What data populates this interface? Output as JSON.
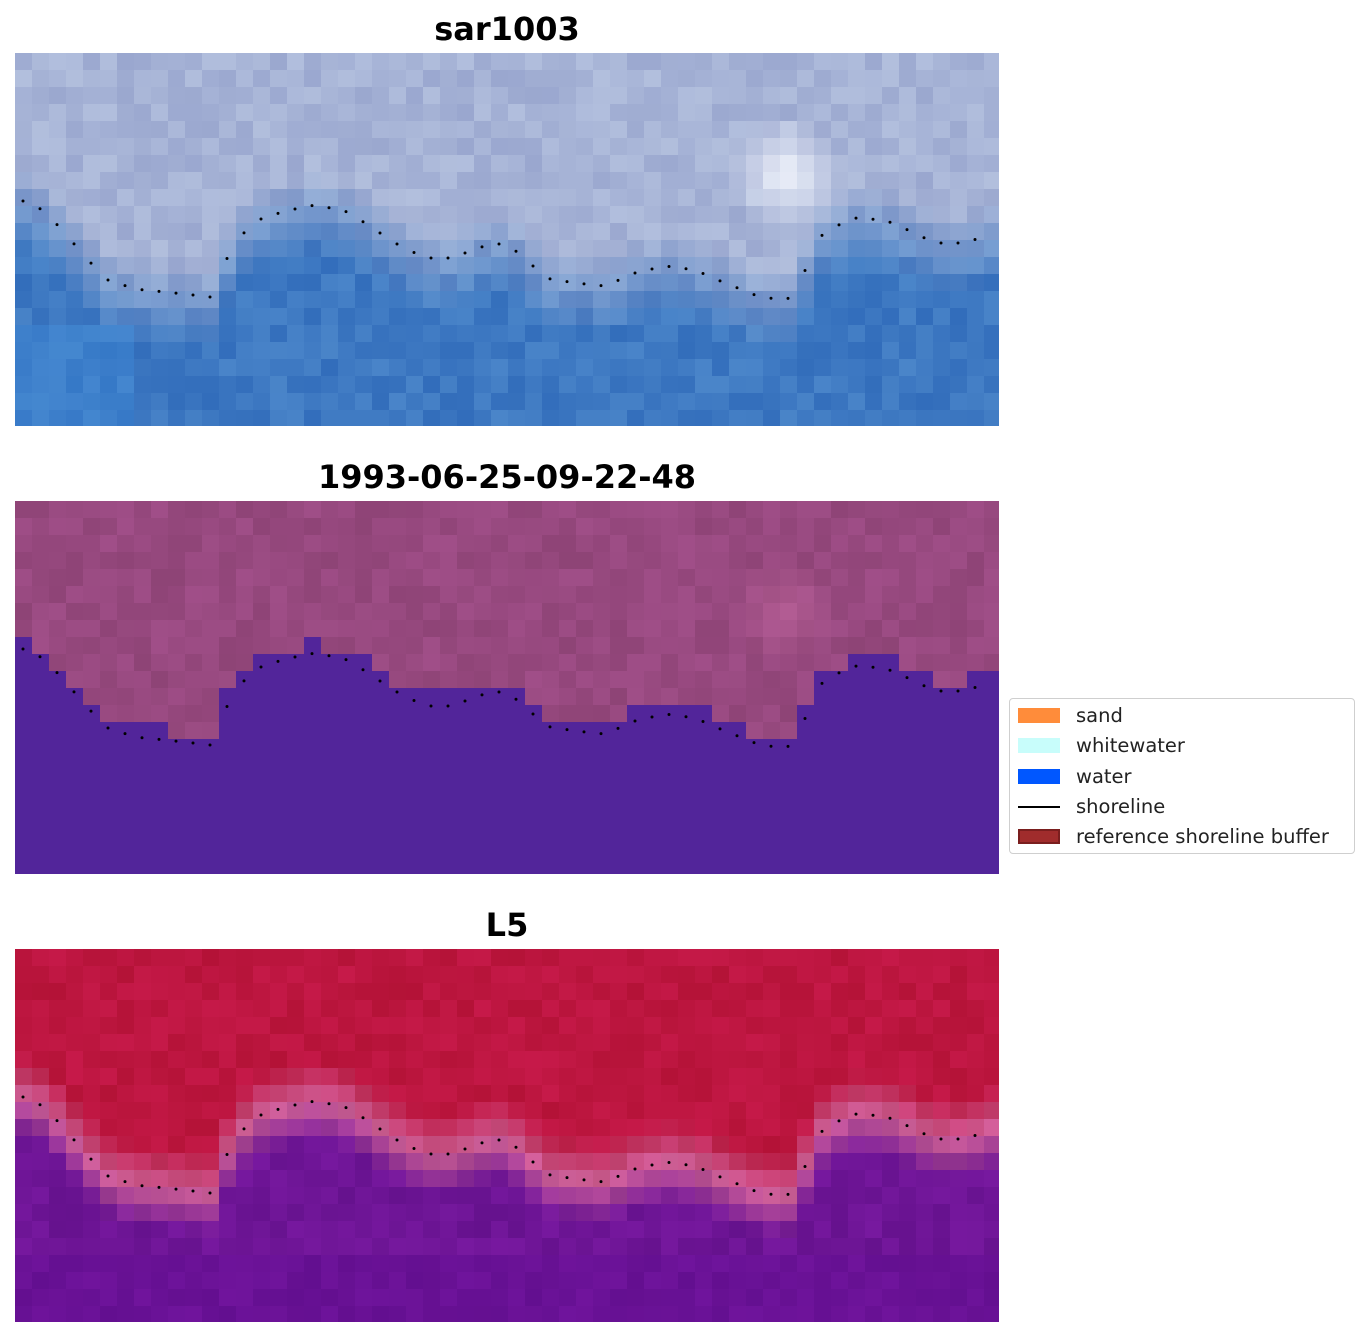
{
  "panels": [
    {
      "title": "sar1003"
    },
    {
      "title": "1993-06-25-09-22-48"
    },
    {
      "title": "L5"
    }
  ],
  "legend": {
    "items": [
      {
        "label": "sand",
        "type": "patch",
        "color": "#ff8c3a"
      },
      {
        "label": "whitewater",
        "type": "patch",
        "color": "#c8fdfb"
      },
      {
        "label": "water",
        "type": "patch",
        "color": "#0057ff"
      },
      {
        "label": "shoreline",
        "type": "line",
        "color": "#000000"
      },
      {
        "label": "reference shoreline buffer",
        "type": "patch",
        "color": "#a02c2c",
        "edge": "#7a1e1e"
      }
    ]
  },
  "colors": {
    "rgb_land": "#a6b3d6",
    "rgb_water": "#3e79c2",
    "classified_land": "#97497f",
    "classified_water": "#52259a",
    "index_land": "#bd1640",
    "index_water": "#6e1596",
    "shoreline_point": "#000000"
  }
}
